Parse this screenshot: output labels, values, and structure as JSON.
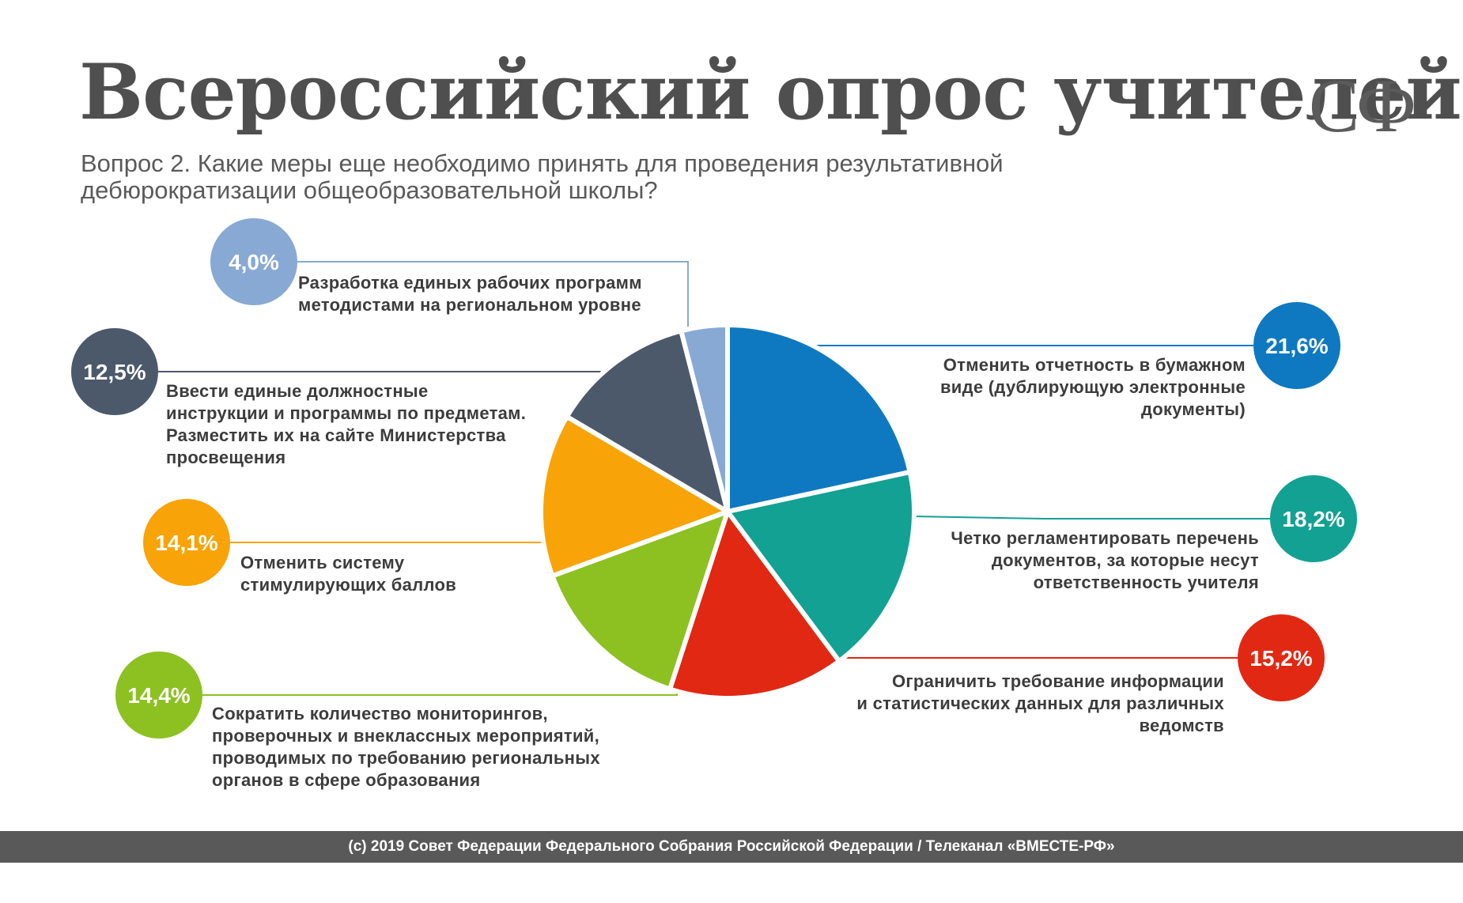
{
  "header": {
    "title": "Всероссийский опрос учителей",
    "logo_text": "СФ",
    "subtitle_lines": [
      "Вопрос 2. Какие меры еще необходимо принять для проведения результативной",
      "дебюрократизации общеобразовательной школы?"
    ]
  },
  "chart_data": {
    "type": "pie",
    "slices": [
      {
        "value": 21.6,
        "label": "21,6%",
        "color": "#0e79c1",
        "text": [
          "Отменить отчетность в бумажном",
          "виде (дублирующую электронные",
          "документы)"
        ]
      },
      {
        "value": 18.2,
        "label": "18,2%",
        "color": "#12a193",
        "text": [
          "Четко регламентировать перечень",
          "документов, за которые несут",
          "ответственность учителя"
        ]
      },
      {
        "value": 15.2,
        "label": "15,2%",
        "color": "#e12813",
        "text": [
          "Ограничить требование информации",
          "и статистических данных для различных",
          "ведомств"
        ]
      },
      {
        "value": 14.4,
        "label": "14,4%",
        "color": "#8dc021",
        "text": [
          "Сократить количество мониторингов,",
          "проверочных и внеклассных мероприятий,",
          "проводимых по требованию региональных",
          "органов в сфере образования"
        ]
      },
      {
        "value": 14.1,
        "label": "14,1%",
        "color": "#f8a307",
        "text": [
          "Отменить систему",
          "стимулирующих баллов"
        ]
      },
      {
        "value": 12.5,
        "label": "12,5%",
        "color": "#4c596b",
        "text": [
          "Ввести единые должностные",
          "инструкции и программы по предметам.",
          "Разместить их на сайте Министерства",
          "просвещения"
        ]
      },
      {
        "value": 4.0,
        "label": "4,0%",
        "color": "#88a9d4",
        "text": [
          "Разработка единых рабочих программ",
          "методистами на региональном уровне"
        ]
      }
    ]
  },
  "footer": {
    "text": "(c) 2019 Совет Федерации Федерального Собрания Российской Федерации / Телеканал «ВМЕСТЕ-РФ»"
  }
}
